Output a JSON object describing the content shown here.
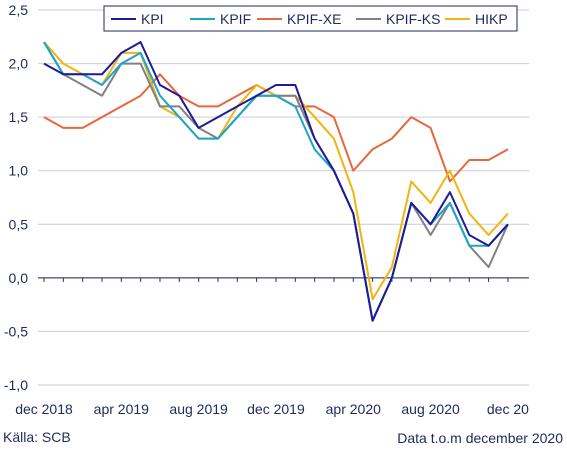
{
  "chart_data": {
    "type": "line",
    "title": "",
    "xlabel": "",
    "ylabel": "",
    "ylim": [
      -1.0,
      2.5
    ],
    "yticks": [
      -1.0,
      -0.5,
      0.0,
      0.5,
      1.0,
      1.5,
      2.0,
      2.5
    ],
    "ytick_labels": [
      "-1,0",
      "-0,5",
      "0,0",
      "0,5",
      "1,0",
      "1,5",
      "2,0",
      "2,5"
    ],
    "x": [
      "dec 2018",
      "jan 2019",
      "feb 2019",
      "mar 2019",
      "apr 2019",
      "maj 2019",
      "jun 2019",
      "jul 2019",
      "aug 2019",
      "sep 2019",
      "okt 2019",
      "nov 2019",
      "dec 2019",
      "jan 2020",
      "feb 2020",
      "mar 2020",
      "apr 2020",
      "maj 2020",
      "jun 2020",
      "jul 2020",
      "aug 2020",
      "sep 2020",
      "okt 2020",
      "nov 2020",
      "dec 2020"
    ],
    "xtick_labels": [
      "dec 2018",
      "apr 2019",
      "aug 2019",
      "dec 2019",
      "apr 2020",
      "aug 2020",
      "dec 20"
    ],
    "grid": "horizontal",
    "legend_position": "top",
    "series": [
      {
        "name": "KPI",
        "color": "#1f1a96",
        "values": [
          2.0,
          1.9,
          1.9,
          1.9,
          2.1,
          2.2,
          1.8,
          1.7,
          1.4,
          1.5,
          1.6,
          1.7,
          1.8,
          1.8,
          1.3,
          1.0,
          0.6,
          -0.4,
          0.0,
          0.7,
          0.5,
          0.8,
          0.4,
          0.3,
          0.5
        ]
      },
      {
        "name": "KPIF",
        "color": "#1aa6c9",
        "values": [
          2.2,
          1.9,
          1.9,
          1.8,
          2.0,
          2.1,
          1.7,
          1.5,
          1.3,
          1.3,
          1.5,
          1.7,
          1.7,
          1.6,
          1.2,
          1.0,
          0.6,
          -0.4,
          0.0,
          0.7,
          0.5,
          0.7,
          0.3,
          0.3,
          0.5
        ]
      },
      {
        "name": "KPIF-XE",
        "color": "#e5683e",
        "values": [
          1.5,
          1.4,
          1.4,
          1.5,
          1.6,
          1.7,
          1.9,
          1.7,
          1.6,
          1.6,
          1.7,
          1.8,
          1.7,
          1.6,
          1.6,
          1.5,
          1.0,
          1.2,
          1.3,
          1.5,
          1.4,
          0.9,
          1.1,
          1.1,
          1.2
        ]
      },
      {
        "name": "KPIF-KS",
        "color": "#7f8285",
        "values": [
          2.2,
          1.9,
          1.8,
          1.7,
          2.0,
          2.0,
          1.6,
          1.6,
          1.4,
          1.3,
          1.5,
          1.7,
          1.7,
          1.7,
          1.3,
          1.0,
          0.6,
          -0.4,
          0.0,
          0.7,
          0.4,
          0.7,
          0.3,
          0.1,
          0.5
        ]
      },
      {
        "name": "HIKP",
        "color": "#f2b40f",
        "values": [
          2.2,
          2.0,
          1.9,
          1.8,
          2.1,
          2.1,
          1.6,
          1.5,
          1.3,
          1.3,
          1.6,
          1.8,
          1.7,
          1.7,
          1.5,
          1.3,
          0.8,
          -0.2,
          0.1,
          0.9,
          0.7,
          1.0,
          0.6,
          0.4,
          0.6
        ]
      }
    ]
  },
  "footer": {
    "source": "Källa: SCB",
    "note": "Data t.o.m december 2020"
  }
}
